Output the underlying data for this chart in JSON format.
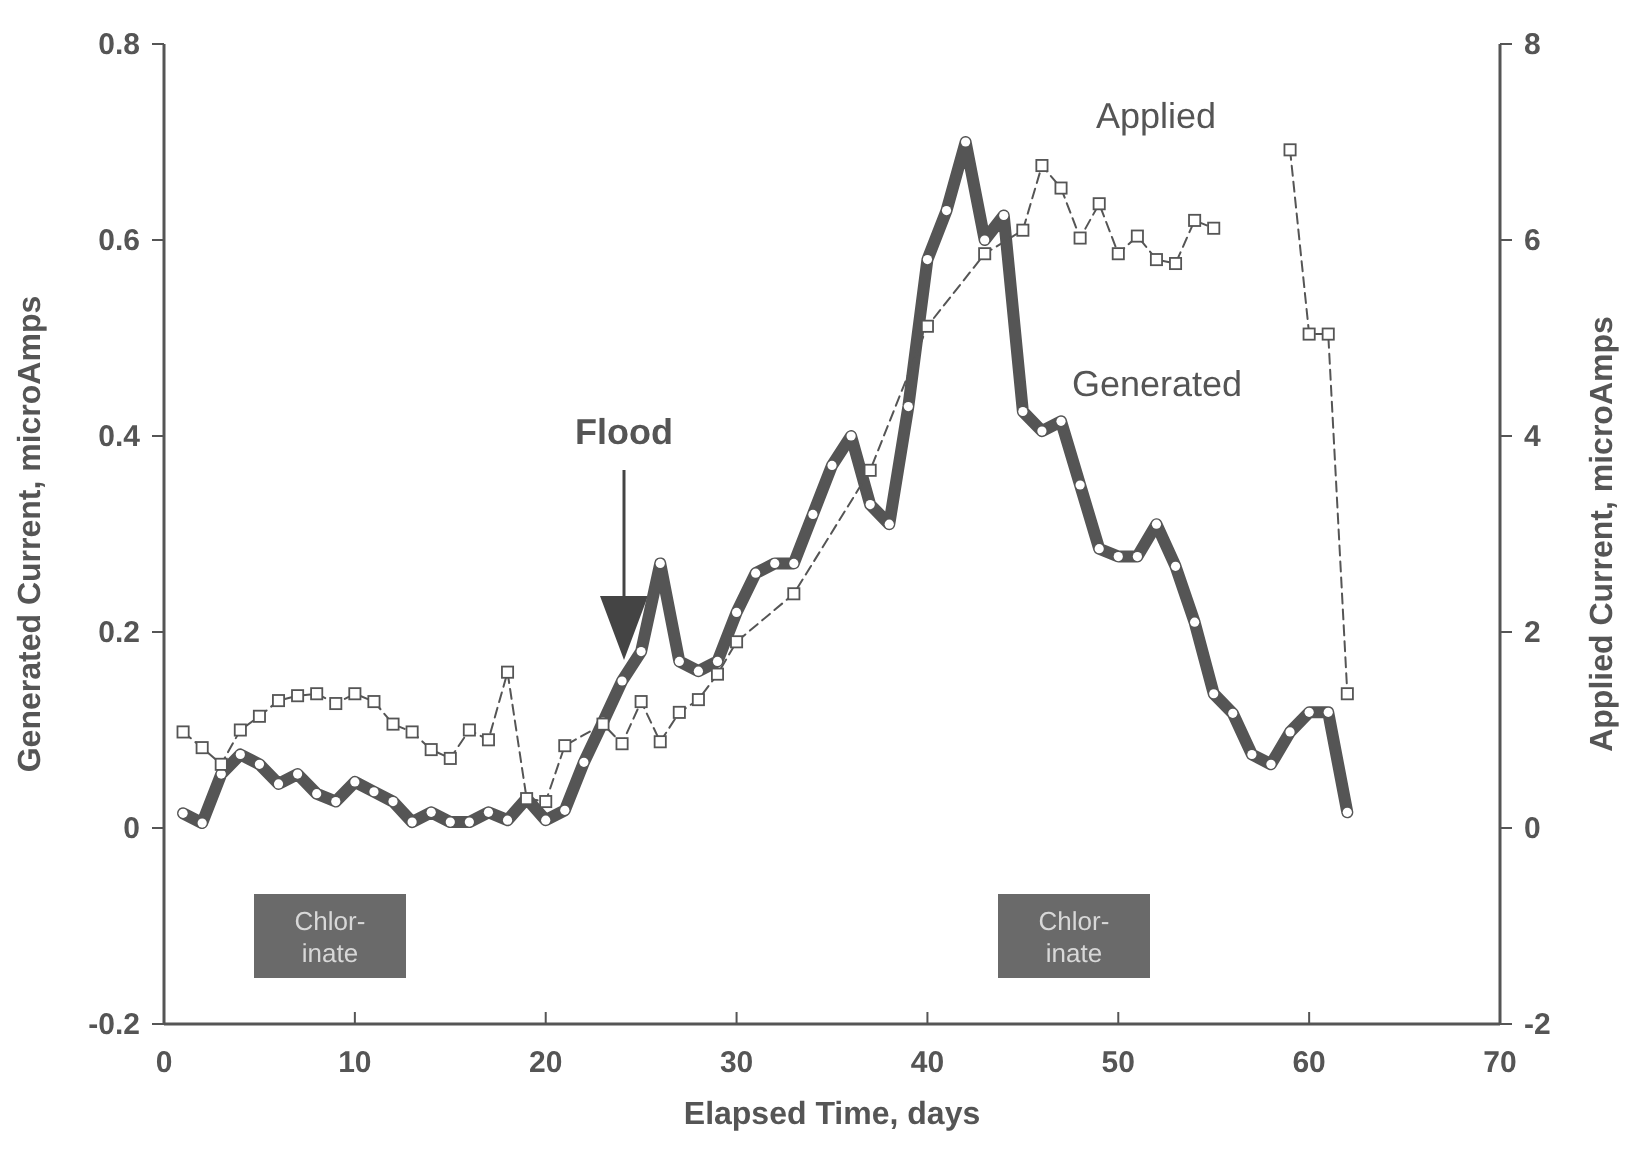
{
  "chart_data": {
    "type": "line",
    "xlabel": "Elapsed Time, days",
    "ylabel": "Generated Current, microAmps",
    "y2label": "Applied Current, microAmps",
    "xlim": [
      0,
      70
    ],
    "xticks": [
      0,
      10,
      20,
      30,
      40,
      50,
      60,
      70
    ],
    "ylim": [
      -0.2,
      0.8
    ],
    "yticks": [
      -0.2,
      0,
      0.2,
      0.4,
      0.6,
      0.8
    ],
    "y2lim": [
      -2,
      8
    ],
    "y2ticks": [
      -2,
      0,
      2,
      4,
      6,
      8
    ],
    "grid": false,
    "series": [
      {
        "name": "Generated",
        "color": "#555555",
        "marker": "circle",
        "line_style": "solid",
        "x": [
          1,
          2,
          3,
          4,
          5,
          6,
          7,
          8,
          9,
          10,
          11,
          12,
          13,
          14,
          15,
          16,
          17,
          18,
          19,
          20,
          21,
          22,
          23,
          24,
          25,
          26,
          27,
          28,
          29,
          30,
          31,
          32,
          33,
          34,
          35,
          36,
          37,
          38,
          39,
          40,
          41,
          42,
          43,
          44,
          45,
          46,
          47,
          48,
          49,
          50,
          51,
          52,
          53,
          54,
          55,
          56,
          57,
          58,
          59,
          60,
          61,
          62
        ],
        "values": [
          0.015,
          0.005,
          0.055,
          0.075,
          0.065,
          0.045,
          0.055,
          0.035,
          0.027,
          0.047,
          0.037,
          0.027,
          0.006,
          0.016,
          0.006,
          0.006,
          0.016,
          0.008,
          0.03,
          0.008,
          0.018,
          0.067,
          0.108,
          0.15,
          0.18,
          0.27,
          0.17,
          0.16,
          0.17,
          0.22,
          0.26,
          0.27,
          0.27,
          0.32,
          0.37,
          0.4,
          0.33,
          0.31,
          0.43,
          0.58,
          0.63,
          0.7,
          0.6,
          0.625,
          0.425,
          0.405,
          0.415,
          0.35,
          0.285,
          0.277,
          0.277,
          0.31,
          0.267,
          0.21,
          0.137,
          0.117,
          0.075,
          0.065,
          0.098,
          0.118,
          0.118,
          0.016
        ]
      },
      {
        "name": "Applied",
        "color": "#555555",
        "marker": "square",
        "line_style": "dashed",
        "axis": "y2",
        "x": [
          1,
          2,
          3,
          4,
          5,
          6,
          7,
          8,
          9,
          10,
          11,
          12,
          13,
          14,
          15,
          16,
          17,
          18,
          19,
          20,
          21,
          23,
          24,
          25,
          26,
          27,
          28,
          29,
          30,
          33,
          37,
          40,
          43,
          45,
          46,
          47,
          48,
          49,
          50,
          51,
          52,
          53,
          54,
          55,
          56,
          59,
          60,
          61,
          62
        ],
        "values": [
          0.98,
          0.82,
          0.65,
          1.0,
          1.14,
          1.3,
          1.35,
          1.37,
          1.27,
          1.37,
          1.29,
          1.06,
          0.98,
          0.8,
          0.71,
          1.0,
          0.9,
          1.59,
          0.3,
          0.27,
          0.84,
          1.06,
          0.86,
          1.29,
          0.88,
          1.18,
          1.31,
          1.57,
          1.9,
          2.39,
          3.65,
          5.12,
          5.86,
          6.1,
          6.76,
          6.53,
          6.02,
          6.37,
          5.86,
          6.04,
          5.8,
          5.76,
          6.2,
          6.12,
          null,
          6.92,
          5.04,
          5.04,
          1.37
        ]
      }
    ],
    "annotations": [
      "Flood",
      "Chlor-\ninate",
      "Chlor-\ninate"
    ]
  }
}
